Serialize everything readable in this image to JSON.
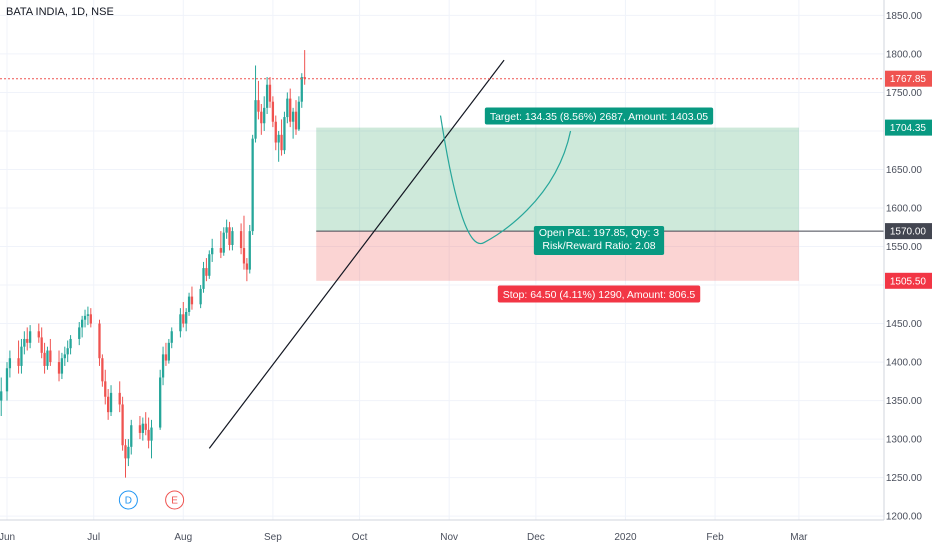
{
  "chart_data": {
    "type": "candlestick",
    "title": "BATA INDIA, 1D, NSE",
    "ylim": [
      1195,
      1870
    ],
    "y_ticks": [
      1200,
      1250,
      1300,
      1350,
      1400,
      1450,
      1500,
      1550,
      1600,
      1650,
      1700,
      1750,
      1800,
      1850
    ],
    "y_tick_labels": [
      "1200.00",
      "1250.00",
      "1300.00",
      "1350.00",
      "1400.00",
      "1450.00",
      "1500.00",
      "1550.00",
      "1600.00",
      "1650.00",
      "1700.00",
      "1750.00",
      "1800.00",
      "1850.00"
    ],
    "x_ticks": [
      {
        "label": "Jun",
        "day": 0
      },
      {
        "label": "Jul",
        "day": 30
      },
      {
        "label": "Aug",
        "day": 61
      },
      {
        "label": "Sep",
        "day": 92
      },
      {
        "label": "Oct",
        "day": 122
      },
      {
        "label": "Nov",
        "day": 153
      },
      {
        "label": "Dec",
        "day": 183
      },
      {
        "label": "2020",
        "day": 214
      },
      {
        "label": "Feb",
        "day": 245
      },
      {
        "label": "Mar",
        "day": 274
      }
    ],
    "colors": {
      "up": "#26a69a",
      "down": "#ef5350"
    },
    "candles": [
      {
        "d": -2,
        "o": 1350,
        "h": 1380,
        "l": 1330,
        "c": 1362
      },
      {
        "d": 0,
        "o": 1362,
        "h": 1400,
        "l": 1350,
        "c": 1392
      },
      {
        "d": 1,
        "o": 1392,
        "h": 1415,
        "l": 1380,
        "c": 1405
      },
      {
        "d": 4,
        "o": 1405,
        "h": 1428,
        "l": 1385,
        "c": 1395
      },
      {
        "d": 5,
        "o": 1395,
        "h": 1430,
        "l": 1385,
        "c": 1420
      },
      {
        "d": 6,
        "o": 1420,
        "h": 1440,
        "l": 1410,
        "c": 1430
      },
      {
        "d": 7,
        "o": 1430,
        "h": 1445,
        "l": 1415,
        "c": 1425
      },
      {
        "d": 8,
        "o": 1425,
        "h": 1448,
        "l": 1418,
        "c": 1440
      },
      {
        "d": 11,
        "o": 1440,
        "h": 1450,
        "l": 1425,
        "c": 1432
      },
      {
        "d": 12,
        "o": 1432,
        "h": 1445,
        "l": 1405,
        "c": 1412
      },
      {
        "d": 13,
        "o": 1412,
        "h": 1425,
        "l": 1385,
        "c": 1395
      },
      {
        "d": 14,
        "o": 1395,
        "h": 1420,
        "l": 1390,
        "c": 1415
      },
      {
        "d": 15,
        "o": 1415,
        "h": 1430,
        "l": 1395,
        "c": 1400
      },
      {
        "d": 18,
        "o": 1400,
        "h": 1415,
        "l": 1375,
        "c": 1385
      },
      {
        "d": 19,
        "o": 1385,
        "h": 1412,
        "l": 1378,
        "c": 1405
      },
      {
        "d": 20,
        "o": 1405,
        "h": 1420,
        "l": 1395,
        "c": 1410
      },
      {
        "d": 21,
        "o": 1410,
        "h": 1428,
        "l": 1400,
        "c": 1418
      },
      {
        "d": 22,
        "o": 1418,
        "h": 1435,
        "l": 1410,
        "c": 1430
      },
      {
        "d": 25,
        "o": 1430,
        "h": 1452,
        "l": 1422,
        "c": 1445
      },
      {
        "d": 26,
        "o": 1445,
        "h": 1460,
        "l": 1432,
        "c": 1455
      },
      {
        "d": 27,
        "o": 1455,
        "h": 1468,
        "l": 1445,
        "c": 1460
      },
      {
        "d": 28,
        "o": 1460,
        "h": 1472,
        "l": 1448,
        "c": 1462
      },
      {
        "d": 29,
        "o": 1462,
        "h": 1470,
        "l": 1445,
        "c": 1450
      },
      {
        "d": 32,
        "o": 1450,
        "h": 1455,
        "l": 1395,
        "c": 1405
      },
      {
        "d": 33,
        "o": 1405,
        "h": 1410,
        "l": 1368,
        "c": 1375
      },
      {
        "d": 34,
        "o": 1375,
        "h": 1390,
        "l": 1345,
        "c": 1355
      },
      {
        "d": 35,
        "o": 1355,
        "h": 1365,
        "l": 1325,
        "c": 1335
      },
      {
        "d": 36,
        "o": 1335,
        "h": 1370,
        "l": 1330,
        "c": 1360
      },
      {
        "d": 39,
        "o": 1360,
        "h": 1375,
        "l": 1335,
        "c": 1345
      },
      {
        "d": 40,
        "o": 1345,
        "h": 1355,
        "l": 1285,
        "c": 1292
      },
      {
        "d": 41,
        "o": 1292,
        "h": 1300,
        "l": 1250,
        "c": 1275
      },
      {
        "d": 42,
        "o": 1275,
        "h": 1300,
        "l": 1265,
        "c": 1290
      },
      {
        "d": 43,
        "o": 1290,
        "h": 1325,
        "l": 1280,
        "c": 1318
      },
      {
        "d": 46,
        "o": 1318,
        "h": 1330,
        "l": 1300,
        "c": 1308
      },
      {
        "d": 47,
        "o": 1308,
        "h": 1328,
        "l": 1298,
        "c": 1320
      },
      {
        "d": 48,
        "o": 1320,
        "h": 1335,
        "l": 1305,
        "c": 1312
      },
      {
        "d": 49,
        "o": 1312,
        "h": 1328,
        "l": 1288,
        "c": 1298
      },
      {
        "d": 50,
        "o": 1298,
        "h": 1325,
        "l": 1275,
        "c": 1315
      },
      {
        "d": 53,
        "o": 1315,
        "h": 1390,
        "l": 1312,
        "c": 1380
      },
      {
        "d": 54,
        "o": 1380,
        "h": 1420,
        "l": 1370,
        "c": 1410
      },
      {
        "d": 55,
        "o": 1410,
        "h": 1425,
        "l": 1395,
        "c": 1402
      },
      {
        "d": 56,
        "o": 1402,
        "h": 1430,
        "l": 1398,
        "c": 1425
      },
      {
        "d": 57,
        "o": 1425,
        "h": 1445,
        "l": 1418,
        "c": 1440
      },
      {
        "d": 60,
        "o": 1440,
        "h": 1470,
        "l": 1432,
        "c": 1462
      },
      {
        "d": 61,
        "o": 1462,
        "h": 1478,
        "l": 1445,
        "c": 1450
      },
      {
        "d": 62,
        "o": 1450,
        "h": 1470,
        "l": 1440,
        "c": 1465
      },
      {
        "d": 63,
        "o": 1465,
        "h": 1490,
        "l": 1460,
        "c": 1485
      },
      {
        "d": 64,
        "o": 1485,
        "h": 1498,
        "l": 1468,
        "c": 1475
      },
      {
        "d": 67,
        "o": 1475,
        "h": 1500,
        "l": 1470,
        "c": 1495
      },
      {
        "d": 68,
        "o": 1495,
        "h": 1530,
        "l": 1490,
        "c": 1522
      },
      {
        "d": 69,
        "o": 1522,
        "h": 1535,
        "l": 1505,
        "c": 1512
      },
      {
        "d": 70,
        "o": 1512,
        "h": 1545,
        "l": 1508,
        "c": 1540
      },
      {
        "d": 71,
        "o": 1540,
        "h": 1560,
        "l": 1530,
        "c": 1548
      },
      {
        "d": 74,
        "o": 1548,
        "h": 1570,
        "l": 1535,
        "c": 1542
      },
      {
        "d": 75,
        "o": 1542,
        "h": 1575,
        "l": 1538,
        "c": 1568
      },
      {
        "d": 76,
        "o": 1568,
        "h": 1585,
        "l": 1560,
        "c": 1575
      },
      {
        "d": 77,
        "o": 1575,
        "h": 1582,
        "l": 1545,
        "c": 1552
      },
      {
        "d": 78,
        "o": 1552,
        "h": 1575,
        "l": 1545,
        "c": 1570
      },
      {
        "d": 81,
        "o": 1570,
        "h": 1580,
        "l": 1540,
        "c": 1548
      },
      {
        "d": 82,
        "o": 1548,
        "h": 1590,
        "l": 1520,
        "c": 1528
      },
      {
        "d": 83,
        "o": 1528,
        "h": 1535,
        "l": 1505,
        "c": 1520
      },
      {
        "d": 84,
        "o": 1520,
        "h": 1578,
        "l": 1515,
        "c": 1570
      },
      {
        "d": 85,
        "o": 1570,
        "h": 1695,
        "l": 1565,
        "c": 1690
      },
      {
        "d": 86,
        "o": 1690,
        "h": 1785,
        "l": 1685,
        "c": 1740
      },
      {
        "d": 87,
        "o": 1740,
        "h": 1765,
        "l": 1715,
        "c": 1725
      },
      {
        "d": 88,
        "o": 1725,
        "h": 1735,
        "l": 1695,
        "c": 1710
      },
      {
        "d": 89,
        "o": 1710,
        "h": 1745,
        "l": 1700,
        "c": 1730
      },
      {
        "d": 90,
        "o": 1730,
        "h": 1770,
        "l": 1722,
        "c": 1760
      },
      {
        "d": 91,
        "o": 1760,
        "h": 1770,
        "l": 1730,
        "c": 1738
      },
      {
        "d": 92,
        "o": 1738,
        "h": 1745,
        "l": 1705,
        "c": 1712
      },
      {
        "d": 93,
        "o": 1712,
        "h": 1720,
        "l": 1675,
        "c": 1685
      },
      {
        "d": 94,
        "o": 1685,
        "h": 1700,
        "l": 1660,
        "c": 1695
      },
      {
        "d": 95,
        "o": 1695,
        "h": 1715,
        "l": 1668,
        "c": 1675
      },
      {
        "d": 96,
        "o": 1675,
        "h": 1725,
        "l": 1670,
        "c": 1718
      },
      {
        "d": 97,
        "o": 1718,
        "h": 1750,
        "l": 1710,
        "c": 1742
      },
      {
        "d": 98,
        "o": 1742,
        "h": 1755,
        "l": 1705,
        "c": 1712
      },
      {
        "d": 99,
        "o": 1712,
        "h": 1730,
        "l": 1690,
        "c": 1725
      },
      {
        "d": 100,
        "o": 1725,
        "h": 1740,
        "l": 1695,
        "c": 1702
      },
      {
        "d": 101,
        "o": 1702,
        "h": 1745,
        "l": 1700,
        "c": 1738
      },
      {
        "d": 102,
        "o": 1738,
        "h": 1775,
        "l": 1730,
        "c": 1770
      },
      {
        "d": 103,
        "o": 1770,
        "h": 1805,
        "l": 1760,
        "c": 1768
      }
    ],
    "position": {
      "entry": 1570.0,
      "target": 1704.35,
      "stop": 1505.5,
      "last": 1767.85,
      "entry_label": "1570.00",
      "target_label": "1704.35",
      "stop_label": "1505.50",
      "last_label": "1767.85",
      "target_text": "Target: 134.35 (8.56%) 2687, Amount: 1403.05",
      "pnl_text": "Open P&L: 197.85, Qty: 3",
      "rr_text": "Risk/Reward Ratio: 2.08",
      "stop_text": "Stop: 64.50 (4.11%) 1290, Amount: 806.5"
    },
    "events": [
      {
        "letter": "D",
        "day": 42,
        "color": "#2196f3"
      },
      {
        "letter": "E",
        "day": 58,
        "color": "#ef5350"
      }
    ]
  }
}
